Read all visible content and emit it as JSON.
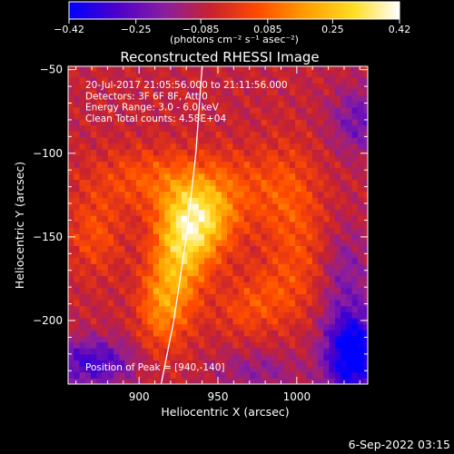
{
  "chart_data": {
    "type": "heatmap",
    "title": "Reconstructed RHESSI Image",
    "xlabel": "Heliocentric X (arcsec)",
    "ylabel": "Heliocentric Y (arcsec)",
    "xlim": [
      855,
      1045
    ],
    "ylim": [
      -238,
      -48
    ],
    "xticks": [
      900,
      950,
      1000
    ],
    "xtick_labels": [
      "900",
      "950",
      "1000"
    ],
    "yticks": [
      -50,
      -100,
      -150,
      -200
    ],
    "ytick_labels": [
      "−50",
      "−100",
      "−150",
      "−200"
    ],
    "colorbar": {
      "range": [
        -0.42,
        0.42
      ],
      "ticks": [
        -0.42,
        -0.25,
        -0.085,
        0.085,
        0.25,
        0.42
      ],
      "tick_labels": [
        "−0.42",
        "−0.25",
        "−0.085",
        "0.085",
        "0.25",
        "0.42"
      ],
      "label": "(photons cm⁻² s⁻¹ asec⁻²)",
      "colors": [
        "#0000ff",
        "#4a00cc",
        "#8a1ea0",
        "#c8222e",
        "#ff4a00",
        "#ff9a00",
        "#ffdd20",
        "#ffffff"
      ]
    },
    "annotations": [
      "20-Jul-2017 21:05:56.000 to 21:11:56.000",
      "Detectors: 3F 6F 8F, Att 0",
      "Energy Range: 3.0 - 6.0 keV",
      "Clean     Total counts: 4.58E+04"
    ],
    "peak_label": "Position of Peak = [940,-140]",
    "peak": [
      940,
      -140
    ],
    "limb_arc": [
      [
        940,
        -48
      ],
      [
        936,
        -100
      ],
      [
        930,
        -150
      ],
      [
        922,
        -200
      ],
      [
        914,
        -238
      ]
    ],
    "sources": [
      {
        "x": 938,
        "y": -140,
        "amp": 0.34,
        "sx": 15,
        "sy": 17
      },
      {
        "x": 925,
        "y": -165,
        "amp": 0.24,
        "sx": 12,
        "sy": 25
      },
      {
        "x": 913,
        "y": -193,
        "amp": 0.16,
        "sx": 10,
        "sy": 18
      },
      {
        "x": 905,
        "y": -115,
        "amp": 0.13,
        "sx": 24,
        "sy": 13
      },
      {
        "x": 960,
        "y": -120,
        "amp": 0.1,
        "sx": 20,
        "sy": 16
      },
      {
        "x": 995,
        "y": -125,
        "amp": 0.12,
        "sx": 14,
        "sy": 22
      },
      {
        "x": 1005,
        "y": -160,
        "amp": 0.08,
        "sx": 15,
        "sy": 18
      },
      {
        "x": 985,
        "y": -185,
        "amp": 0.11,
        "sx": 17,
        "sy": 14
      },
      {
        "x": 872,
        "y": -148,
        "amp": 0.12,
        "sx": 12,
        "sy": 17
      },
      {
        "x": 965,
        "y": -195,
        "amp": 0.07,
        "sx": 12,
        "sy": 10
      },
      {
        "x": 1035,
        "y": -220,
        "amp": -0.42,
        "sx": 12,
        "sy": 18
      },
      {
        "x": 870,
        "y": -225,
        "amp": -0.24,
        "sx": 18,
        "sy": 10
      },
      {
        "x": 1040,
        "y": -80,
        "amp": -0.16,
        "sx": 13,
        "sy": 14
      },
      {
        "x": 1030,
        "y": -170,
        "amp": -0.12,
        "sx": 12,
        "sy": 20
      },
      {
        "x": 975,
        "y": -230,
        "amp": -0.1,
        "sx": 20,
        "sy": 8
      }
    ],
    "background": -0.07
  },
  "footer": {
    "date": "6-Sep-2022 03:15"
  }
}
